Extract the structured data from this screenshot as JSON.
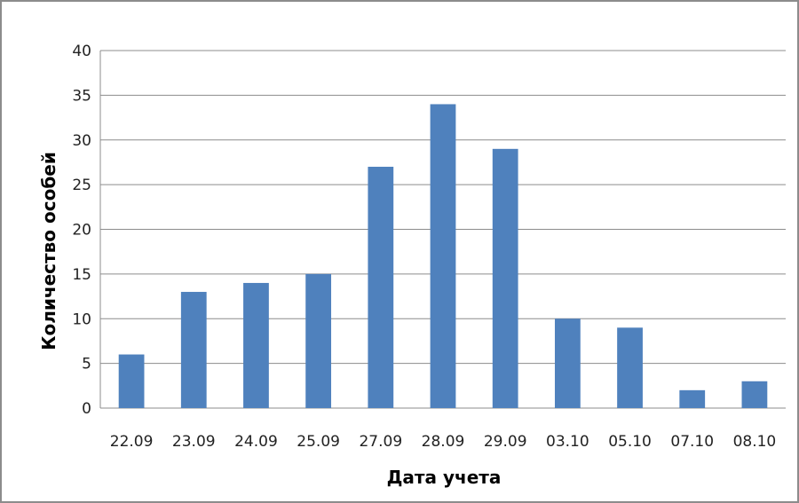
{
  "chart_data": {
    "type": "bar",
    "title": "",
    "xlabel": "Дата учета",
    "ylabel": "Количество особей",
    "categories": [
      "22.09",
      "23.09",
      "24.09",
      "25.09",
      "27.09",
      "28.09",
      "29.09",
      "03.10",
      "05.10",
      "07.10",
      "08.10"
    ],
    "values": [
      6,
      13,
      14,
      15,
      27,
      34,
      29,
      10,
      9,
      2,
      3
    ],
    "ylim": [
      0,
      40
    ],
    "yticks": [
      0,
      5,
      10,
      15,
      20,
      25,
      30,
      35,
      40
    ],
    "grid": true,
    "legend": "none",
    "bar_color": "#4f81bd",
    "grid_color": "#8c8c8c"
  }
}
